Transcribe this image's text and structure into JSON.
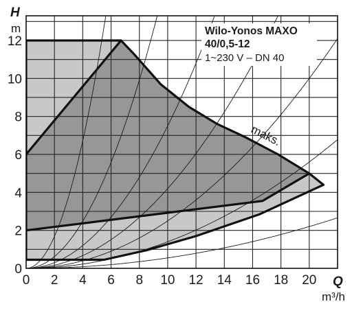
{
  "chart_data": {
    "type": "area",
    "title_lines": [
      "Wilo-Yonos MAXO",
      "40/0,5-12",
      "1~230 V – DN 40"
    ],
    "x_axis": {
      "symbol": "Q",
      "unit": "m³/h",
      "range": [
        0,
        22
      ],
      "ticks": [
        0,
        2,
        4,
        6,
        8,
        10,
        12,
        14,
        16,
        18,
        20
      ]
    },
    "y_axis": {
      "symbol": "H",
      "unit": "m",
      "range": [
        0,
        13.3
      ],
      "ticks": [
        0,
        2,
        4,
        6,
        8,
        10,
        12
      ]
    },
    "grid": true,
    "colors": {
      "outer_area": "#c8c8c8",
      "inner_area": "#979797",
      "outline": "#111111",
      "grid": "#222222"
    },
    "series": [
      {
        "name": "maks.",
        "role": "max-curve",
        "points": [
          [
            0,
            6.0
          ],
          [
            6.7,
            12.0
          ],
          [
            7.6,
            11.3
          ],
          [
            9.5,
            9.7
          ],
          [
            11.5,
            8.5
          ],
          [
            13.5,
            7.6
          ],
          [
            15.5,
            6.9
          ],
          [
            17.8,
            6.0
          ],
          [
            20.0,
            5.0
          ],
          [
            21.0,
            4.4
          ]
        ]
      },
      {
        "role": "min-curve",
        "points": [
          [
            0,
            2.0
          ],
          [
            16.7,
            3.55
          ],
          [
            20.0,
            5.0
          ]
        ]
      },
      {
        "role": "outer-limit-top",
        "points": [
          [
            0,
            12.0
          ],
          [
            6.7,
            12.0
          ]
        ]
      },
      {
        "role": "outer-limit-bottom",
        "points": [
          [
            0,
            0.45
          ],
          [
            5.5,
            0.45
          ],
          [
            8.5,
            0.95
          ],
          [
            12.0,
            1.7
          ],
          [
            16.5,
            2.85
          ],
          [
            21.0,
            4.4
          ]
        ]
      }
    ],
    "system_curves": [
      {
        "k": 0.42
      },
      {
        "k": 0.155
      },
      {
        "k": 0.075
      },
      {
        "k": 0.042
      },
      {
        "k": 0.025
      },
      {
        "k": 0.014
      },
      {
        "k": 0.0055
      }
    ]
  }
}
